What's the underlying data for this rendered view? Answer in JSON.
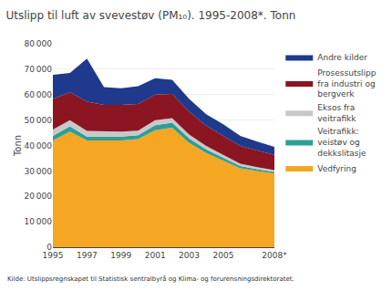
{
  "chart_data": {
    "type": "area",
    "stacked": true,
    "title": "Utslipp til luft av svevestøv (PM₁₀). 1995-2008*. Tonn",
    "ylabel": "Tonn",
    "annotations": [
      "Kilde: Utslippsregnskapet til Statistisk sentralbyrå og Klima- og forurensningsdirektoratet."
    ],
    "x": [
      1995,
      1996,
      1997,
      1998,
      1999,
      2000,
      2001,
      2002,
      2003,
      2004,
      2005,
      2006,
      2007,
      2008
    ],
    "series": [
      {
        "name": "Vedfyring",
        "color": "#F5A623",
        "values": [
          42000,
          45500,
          42000,
          42000,
          42000,
          42500,
          46000,
          47000,
          41000,
          37000,
          34000,
          31000,
          30000,
          29000
        ]
      },
      {
        "name": "Veitrafikk:\nveistøv og\ndekkslitasje",
        "color": "#2E9E96",
        "values": [
          1800,
          2000,
          1500,
          1500,
          1500,
          1500,
          2000,
          2000,
          1800,
          1500,
          1200,
          900,
          700,
          600
        ]
      },
      {
        "name": "Eksos fra\nveitrafikk",
        "color": "#C8C8C8",
        "values": [
          2500,
          2500,
          2200,
          2000,
          2000,
          1800,
          2000,
          1800,
          1500,
          1300,
          1100,
          900,
          800,
          700
        ]
      },
      {
        "name": "Prosessutslipp\nfra industri og\nbergverk",
        "color": "#8B1520",
        "values": [
          12000,
          11000,
          11500,
          10500,
          10500,
          10500,
          10000,
          9500,
          9000,
          8000,
          7500,
          7000,
          6500,
          6000
        ]
      },
      {
        "name": "Andre kilder",
        "color": "#1F3A8C",
        "values": [
          9500,
          7500,
          17000,
          7000,
          6500,
          7000,
          6500,
          5500,
          5000,
          4500,
          4500,
          4000,
          3500,
          3200
        ]
      }
    ],
    "xlim": [
      1995,
      2008
    ],
    "xticks": [
      1995,
      1997,
      1999,
      2001,
      2003,
      2005,
      {
        "value": 2008,
        "label": "2008*"
      }
    ],
    "ylim": [
      0,
      80000
    ],
    "yticks": [
      0,
      {
        "value": 10000,
        "label": "10 000"
      },
      {
        "value": 20000,
        "label": "20 000"
      },
      {
        "value": 30000,
        "label": "30 000"
      },
      {
        "value": 40000,
        "label": "40 000"
      },
      {
        "value": 50000,
        "label": "50 000"
      },
      {
        "value": 60000,
        "label": "60 000"
      },
      {
        "value": 70000,
        "label": "70 000"
      },
      {
        "value": 80000,
        "label": "80 000"
      }
    ],
    "grid": "y",
    "legend": "right"
  }
}
